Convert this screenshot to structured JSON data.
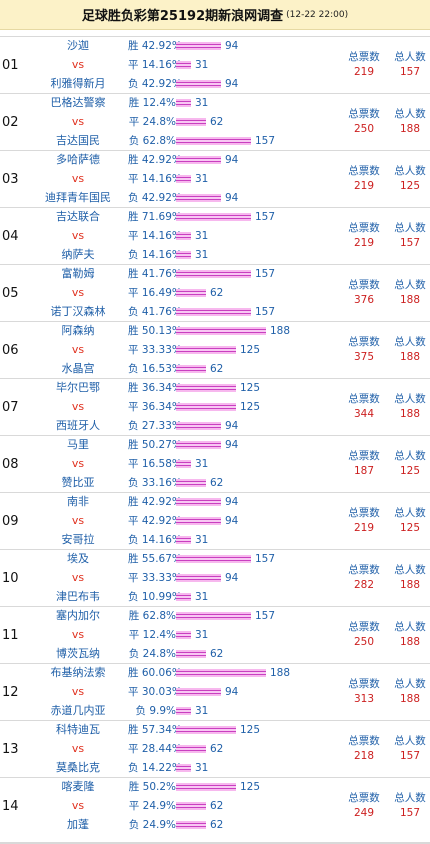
{
  "header": {
    "title": "足球胜负彩第25192期新浪网调查",
    "subtitle": "(12-22 22:00)"
  },
  "labels": {
    "total_votes": "总票数",
    "total_people": "总人数"
  },
  "matches": [
    {
      "no": "01",
      "home": "沙迦",
      "vs": "vs",
      "away": "利雅得新月",
      "rows": [
        {
          "label": "胜",
          "pct": "42.92%",
          "count": "94"
        },
        {
          "label": "平",
          "pct": "14.16%",
          "count": "31"
        },
        {
          "label": "负",
          "pct": "42.92%",
          "count": "94"
        }
      ],
      "votes": "219",
      "people": "157"
    },
    {
      "no": "02",
      "home": "巴格达警察",
      "vs": "vs",
      "away": "吉达国民",
      "rows": [
        {
          "label": "胜",
          "pct": "12.4%",
          "count": "31"
        },
        {
          "label": "平",
          "pct": "24.8%",
          "count": "62"
        },
        {
          "label": "负",
          "pct": "62.8%",
          "count": "157"
        }
      ],
      "votes": "250",
      "people": "188"
    },
    {
      "no": "03",
      "home": "多哈萨德",
      "vs": "vs",
      "away": "迪拜青年国民",
      "rows": [
        {
          "label": "胜",
          "pct": "42.92%",
          "count": "94"
        },
        {
          "label": "平",
          "pct": "14.16%",
          "count": "31"
        },
        {
          "label": "负",
          "pct": "42.92%",
          "count": "94"
        }
      ],
      "votes": "219",
      "people": "125"
    },
    {
      "no": "04",
      "home": "吉达联合",
      "vs": "vs",
      "away": "纳萨夫",
      "rows": [
        {
          "label": "胜",
          "pct": "71.69%",
          "count": "157"
        },
        {
          "label": "平",
          "pct": "14.16%",
          "count": "31"
        },
        {
          "label": "负",
          "pct": "14.16%",
          "count": "31"
        }
      ],
      "votes": "219",
      "people": "157"
    },
    {
      "no": "05",
      "home": "富勒姆",
      "vs": "vs",
      "away": "诺丁汉森林",
      "rows": [
        {
          "label": "胜",
          "pct": "41.76%",
          "count": "157"
        },
        {
          "label": "平",
          "pct": "16.49%",
          "count": "62"
        },
        {
          "label": "负",
          "pct": "41.76%",
          "count": "157"
        }
      ],
      "votes": "376",
      "people": "188"
    },
    {
      "no": "06",
      "home": "阿森纳",
      "vs": "vs",
      "away": "水晶宫",
      "rows": [
        {
          "label": "胜",
          "pct": "50.13%",
          "count": "188"
        },
        {
          "label": "平",
          "pct": "33.33%",
          "count": "125"
        },
        {
          "label": "负",
          "pct": "16.53%",
          "count": "62"
        }
      ],
      "votes": "375",
      "people": "188"
    },
    {
      "no": "07",
      "home": "毕尔巴鄂",
      "vs": "vs",
      "away": "西班牙人",
      "rows": [
        {
          "label": "胜",
          "pct": "36.34%",
          "count": "125"
        },
        {
          "label": "平",
          "pct": "36.34%",
          "count": "125"
        },
        {
          "label": "负",
          "pct": "27.33%",
          "count": "94"
        }
      ],
      "votes": "344",
      "people": "188"
    },
    {
      "no": "08",
      "home": "马里",
      "vs": "vs",
      "away": "赞比亚",
      "rows": [
        {
          "label": "胜",
          "pct": "50.27%",
          "count": "94"
        },
        {
          "label": "平",
          "pct": "16.58%",
          "count": "31"
        },
        {
          "label": "负",
          "pct": "33.16%",
          "count": "62"
        }
      ],
      "votes": "187",
      "people": "125"
    },
    {
      "no": "09",
      "home": "南非",
      "vs": "vs",
      "away": "安哥拉",
      "rows": [
        {
          "label": "胜",
          "pct": "42.92%",
          "count": "94"
        },
        {
          "label": "平",
          "pct": "42.92%",
          "count": "94"
        },
        {
          "label": "负",
          "pct": "14.16%",
          "count": "31"
        }
      ],
      "votes": "219",
      "people": "125"
    },
    {
      "no": "10",
      "home": "埃及",
      "vs": "vs",
      "away": "津巴布韦",
      "rows": [
        {
          "label": "胜",
          "pct": "55.67%",
          "count": "157"
        },
        {
          "label": "平",
          "pct": "33.33%",
          "count": "94"
        },
        {
          "label": "负",
          "pct": "10.99%",
          "count": "31"
        }
      ],
      "votes": "282",
      "people": "188"
    },
    {
      "no": "11",
      "home": "塞内加尔",
      "vs": "vs",
      "away": "博茨瓦纳",
      "rows": [
        {
          "label": "胜",
          "pct": "62.8%",
          "count": "157"
        },
        {
          "label": "平",
          "pct": "12.4%",
          "count": "31"
        },
        {
          "label": "负",
          "pct": "24.8%",
          "count": "62"
        }
      ],
      "votes": "250",
      "people": "188"
    },
    {
      "no": "12",
      "home": "布基纳法索",
      "vs": "vs",
      "away": "赤道几内亚",
      "rows": [
        {
          "label": "胜",
          "pct": "60.06%",
          "count": "188"
        },
        {
          "label": "平",
          "pct": "30.03%",
          "count": "94"
        },
        {
          "label": "负",
          "pct": "9.9%",
          "count": "31"
        }
      ],
      "votes": "313",
      "people": "188"
    },
    {
      "no": "13",
      "home": "科特迪瓦",
      "vs": "vs",
      "away": "莫桑比克",
      "rows": [
        {
          "label": "胜",
          "pct": "57.34%",
          "count": "125"
        },
        {
          "label": "平",
          "pct": "28.44%",
          "count": "62"
        },
        {
          "label": "负",
          "pct": "14.22%",
          "count": "31"
        }
      ],
      "votes": "218",
      "people": "157"
    },
    {
      "no": "14",
      "home": "喀麦隆",
      "vs": "vs",
      "away": "加蓬",
      "rows": [
        {
          "label": "胜",
          "pct": "50.2%",
          "count": "125"
        },
        {
          "label": "平",
          "pct": "24.9%",
          "count": "62"
        },
        {
          "label": "负",
          "pct": "24.9%",
          "count": "62"
        }
      ],
      "votes": "249",
      "people": "157"
    }
  ]
}
